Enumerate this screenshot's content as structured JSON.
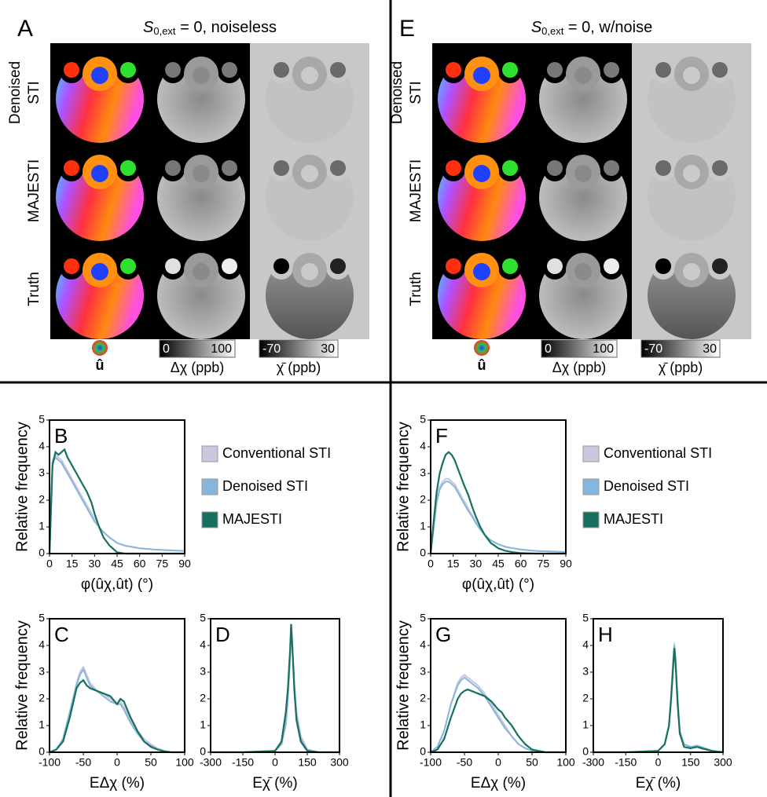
{
  "panels": [
    {
      "letter": "A",
      "title": {
        "symbol": "S",
        "subscript": "0,ext",
        "text": " = 0, noiseless"
      },
      "rows": [
        [
          "Denoised",
          "STI"
        ],
        [
          "MAJESTI"
        ],
        [
          "Truth"
        ]
      ],
      "direction_label": "û",
      "colorbars": [
        {
          "min": 0,
          "max": 100,
          "label": "Δχ (ppb)"
        },
        {
          "min": -70,
          "max": 30,
          "label": "χ̄ (ppb)"
        }
      ]
    },
    {
      "letter": "E",
      "title": {
        "symbol": "S",
        "subscript": "0,ext",
        "text": " = 0, w/noise"
      },
      "rows": [
        [
          "Denoised",
          "STI"
        ],
        [
          "MAJESTI"
        ],
        [
          "Truth"
        ]
      ],
      "direction_label": "û",
      "colorbars": [
        {
          "min": 0,
          "max": 100,
          "label": "Δχ (ppb)"
        },
        {
          "min": -70,
          "max": 30,
          "label": "χ̄ (ppb)"
        }
      ]
    }
  ],
  "chart_data": [
    {
      "type": "line",
      "label": "B",
      "ylabel": "Relative frequency",
      "xlabel": "φ(ûχ,ût) (°)",
      "legend": "right",
      "x": [
        0,
        2,
        4,
        6,
        8,
        10,
        12,
        14,
        16,
        18,
        20,
        22,
        25,
        28,
        30,
        33,
        36,
        40,
        45,
        50,
        55,
        60,
        70,
        80,
        90
      ],
      "xlim": [
        0,
        90
      ],
      "xticks": [
        0,
        15,
        30,
        45,
        60,
        75,
        90
      ],
      "ylim": [
        0,
        5
      ],
      "yticks": [
        0,
        1,
        2,
        3,
        4,
        5
      ],
      "series": [
        {
          "name": "Conventional STI",
          "color": "#c9c8de",
          "values": [
            0,
            3.5,
            3.7,
            3.6,
            3.5,
            3.3,
            3.1,
            2.9,
            2.7,
            2.5,
            2.3,
            2.1,
            1.8,
            1.5,
            1.3,
            1.0,
            0.8,
            0.6,
            0.4,
            0.3,
            0.25,
            0.2,
            0.15,
            0.12,
            0.1
          ]
        },
        {
          "name": "Denoised STI",
          "color": "#86b6dc",
          "values": [
            0,
            3.4,
            3.6,
            3.5,
            3.4,
            3.2,
            3.0,
            2.8,
            2.6,
            2.4,
            2.2,
            2.0,
            1.7,
            1.4,
            1.2,
            1.0,
            0.8,
            0.6,
            0.4,
            0.3,
            0.25,
            0.2,
            0.15,
            0.12,
            0.1
          ]
        },
        {
          "name": "MAJESTI",
          "color": "#17705f",
          "values": [
            0,
            3.3,
            3.8,
            3.7,
            3.8,
            3.9,
            3.6,
            3.4,
            3.2,
            3.0,
            2.8,
            2.6,
            2.3,
            1.9,
            1.5,
            1.0,
            0.6,
            0.3,
            0.05,
            0,
            0,
            0,
            0,
            0,
            0
          ]
        }
      ]
    },
    {
      "type": "line",
      "label": "C",
      "ylabel": "Relative frequency",
      "xlabel": "EΔχ (%)",
      "x": [
        -100,
        -90,
        -80,
        -70,
        -60,
        -55,
        -50,
        -45,
        -40,
        -30,
        -20,
        -10,
        0,
        5,
        10,
        20,
        30,
        40,
        50,
        60,
        70,
        80,
        90,
        100
      ],
      "xlim": [
        -100,
        100
      ],
      "xticks": [
        -100,
        -50,
        0,
        50,
        100
      ],
      "ylim": [
        0,
        5
      ],
      "yticks": [
        0,
        1,
        2,
        3,
        4,
        5
      ],
      "series": [
        {
          "color": "#c9c8de",
          "values": [
            0,
            0.1,
            0.5,
            1.5,
            2.6,
            3.0,
            3.2,
            2.9,
            2.6,
            2.3,
            2.2,
            2.0,
            1.8,
            1.9,
            1.7,
            1.2,
            0.8,
            0.5,
            0.3,
            0.15,
            0.05,
            0,
            0,
            0
          ]
        },
        {
          "color": "#86b6dc",
          "values": [
            0,
            0.1,
            0.5,
            1.5,
            2.5,
            2.9,
            3.1,
            2.8,
            2.5,
            2.3,
            2.1,
            1.9,
            1.8,
            1.8,
            1.6,
            1.1,
            0.7,
            0.4,
            0.25,
            0.1,
            0.05,
            0,
            0,
            0
          ]
        },
        {
          "color": "#17705f",
          "values": [
            0,
            0.1,
            0.4,
            1.3,
            2.4,
            2.6,
            2.7,
            2.5,
            2.4,
            2.3,
            2.2,
            2.1,
            1.8,
            2.0,
            1.9,
            1.3,
            0.8,
            0.4,
            0.2,
            0.1,
            0.03,
            0,
            0,
            0
          ]
        }
      ]
    },
    {
      "type": "line",
      "label": "D",
      "xlabel": "Eχ̄ (%)",
      "x": [
        -300,
        -150,
        0,
        30,
        50,
        60,
        70,
        75,
        80,
        90,
        100,
        120,
        150,
        200,
        300
      ],
      "xlim": [
        -300,
        300
      ],
      "xticks": [
        -300,
        -150,
        0,
        150,
        300
      ],
      "ylim": [
        0,
        5
      ],
      "yticks": [
        0,
        1,
        2,
        3,
        4,
        5
      ],
      "series": [
        {
          "color": "#c9c8de",
          "values": [
            0,
            0,
            0.05,
            0.3,
            1.0,
            2.0,
            3.5,
            4.6,
            4.0,
            2.5,
            1.5,
            0.6,
            0.1,
            0,
            0
          ]
        },
        {
          "color": "#86b6dc",
          "values": [
            0,
            0,
            0.05,
            0.3,
            1.1,
            2.1,
            3.6,
            4.7,
            4.1,
            2.5,
            1.4,
            0.5,
            0.1,
            0,
            0
          ]
        },
        {
          "color": "#17705f",
          "values": [
            0,
            0,
            0.05,
            0.4,
            1.5,
            2.4,
            3.8,
            4.8,
            4.0,
            2.3,
            1.2,
            0.4,
            0.05,
            0,
            0
          ]
        }
      ]
    },
    {
      "type": "line",
      "label": "F",
      "ylabel": "Relative frequency",
      "xlabel": "φ(ûχ,ût) (°)",
      "legend": "right",
      "x": [
        0,
        2,
        4,
        6,
        8,
        10,
        12,
        14,
        16,
        18,
        20,
        22,
        25,
        28,
        30,
        33,
        36,
        40,
        45,
        50,
        55,
        60,
        70,
        80,
        90
      ],
      "xlim": [
        0,
        90
      ],
      "xticks": [
        0,
        15,
        30,
        45,
        60,
        75,
        90
      ],
      "ylim": [
        0,
        5
      ],
      "yticks": [
        0,
        1,
        2,
        3,
        4,
        5
      ],
      "series": [
        {
          "name": "Conventional STI",
          "color": "#c9c8de",
          "values": [
            0,
            1,
            2,
            2.5,
            2.7,
            2.8,
            2.8,
            2.7,
            2.6,
            2.4,
            2.2,
            2.0,
            1.7,
            1.4,
            1.2,
            0.9,
            0.7,
            0.5,
            0.35,
            0.25,
            0.2,
            0.15,
            0.1,
            0.08,
            0.06
          ]
        },
        {
          "name": "Denoised STI",
          "color": "#86b6dc",
          "values": [
            0,
            0.95,
            1.9,
            2.4,
            2.6,
            2.7,
            2.7,
            2.6,
            2.5,
            2.3,
            2.1,
            1.9,
            1.6,
            1.35,
            1.15,
            0.9,
            0.7,
            0.5,
            0.35,
            0.25,
            0.2,
            0.15,
            0.1,
            0.08,
            0.06
          ]
        },
        {
          "name": "MAJESTI",
          "color": "#17705f",
          "values": [
            0,
            1.2,
            2.3,
            3.0,
            3.4,
            3.7,
            3.8,
            3.7,
            3.5,
            3.2,
            2.9,
            2.6,
            2.2,
            1.7,
            1.4,
            1.0,
            0.7,
            0.4,
            0.2,
            0.1,
            0.05,
            0.02,
            0,
            0,
            0
          ]
        }
      ]
    },
    {
      "type": "line",
      "label": "G",
      "ylabel": "Relative frequency",
      "xlabel": "EΔχ (%)",
      "x": [
        -100,
        -90,
        -80,
        -70,
        -60,
        -55,
        -50,
        -45,
        -40,
        -30,
        -20,
        -10,
        0,
        5,
        10,
        20,
        30,
        40,
        50,
        60,
        70,
        80,
        90,
        100
      ],
      "xlim": [
        -100,
        100
      ],
      "xticks": [
        -100,
        -50,
        0,
        50,
        100
      ],
      "ylim": [
        0,
        5
      ],
      "yticks": [
        0,
        1,
        2,
        3,
        4,
        5
      ],
      "series": [
        {
          "color": "#c9c8de",
          "values": [
            0,
            0.2,
            0.8,
            1.8,
            2.6,
            2.8,
            2.9,
            2.8,
            2.7,
            2.5,
            2.2,
            1.8,
            1.4,
            1.2,
            1.0,
            0.6,
            0.3,
            0.15,
            0.05,
            0,
            0,
            0,
            0,
            0
          ]
        },
        {
          "color": "#86b6dc",
          "values": [
            0,
            0.2,
            0.8,
            1.8,
            2.5,
            2.7,
            2.8,
            2.7,
            2.6,
            2.4,
            2.1,
            1.7,
            1.3,
            1.1,
            0.9,
            0.6,
            0.3,
            0.15,
            0.05,
            0,
            0,
            0,
            0,
            0
          ]
        },
        {
          "color": "#17705f",
          "values": [
            0,
            0.1,
            0.5,
            1.3,
            2.0,
            2.2,
            2.3,
            2.35,
            2.3,
            2.2,
            2.1,
            1.9,
            1.6,
            1.5,
            1.3,
            1.0,
            0.6,
            0.3,
            0.1,
            0.05,
            0,
            0,
            0,
            0
          ]
        }
      ]
    },
    {
      "type": "line",
      "label": "H",
      "xlabel": "Eχ̄ (%)",
      "x": [
        -300,
        -150,
        0,
        30,
        50,
        60,
        70,
        75,
        80,
        90,
        100,
        120,
        150,
        180,
        200,
        250,
        300
      ],
      "xlim": [
        -300,
        300
      ],
      "xticks": [
        -300,
        -150,
        0,
        150,
        300
      ],
      "ylim": [
        0,
        5
      ],
      "yticks": [
        0,
        1,
        2,
        3,
        4,
        5
      ],
      "series": [
        {
          "color": "#c9c8de",
          "values": [
            0,
            0,
            0.05,
            0.3,
            1.0,
            2.2,
            3.6,
            4.1,
            3.6,
            2.0,
            0.8,
            0.3,
            0.2,
            0.25,
            0.2,
            0.05,
            0
          ]
        },
        {
          "color": "#86b6dc",
          "values": [
            0,
            0,
            0.05,
            0.3,
            1.0,
            2.1,
            3.5,
            4.0,
            3.5,
            2.0,
            0.8,
            0.3,
            0.2,
            0.25,
            0.2,
            0.05,
            0
          ]
        },
        {
          "color": "#17705f",
          "values": [
            0,
            0,
            0.05,
            0.3,
            1.0,
            2.0,
            3.3,
            3.9,
            3.4,
            1.8,
            0.7,
            0.2,
            0.15,
            0.2,
            0.15,
            0.05,
            0
          ]
        }
      ]
    }
  ]
}
